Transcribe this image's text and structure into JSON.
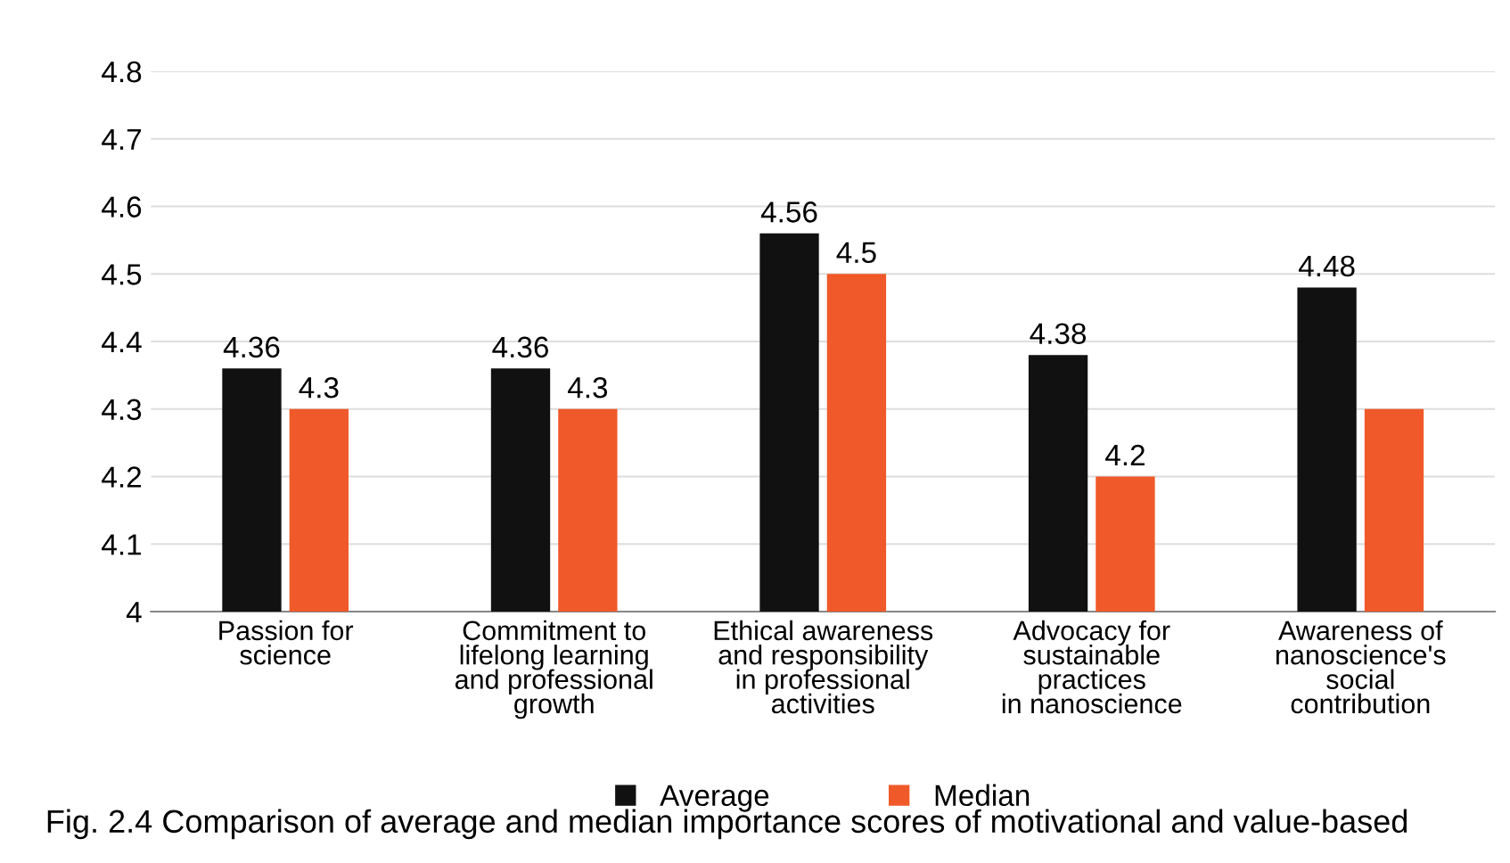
{
  "chart_data": {
    "type": "bar",
    "categories": [
      "Passion for\nscience",
      "Commitment to\nlifelong learning\nand professional\ngrowth",
      "Ethical awareness\nand responsibility\nin professional\nactivities",
      "Advocacy for\nsustainable\npractices\nin nanoscience",
      "Awareness of\nnanoscience's\nsocial\ncontribution"
    ],
    "series": [
      {
        "name": "Average",
        "color": "#111111",
        "values": [
          4.36,
          4.36,
          4.56,
          4.38,
          4.48
        ],
        "value_labels": [
          "4.36",
          "4.36",
          "4.56",
          "4.38",
          "4.48"
        ]
      },
      {
        "name": "Median",
        "color": "#f0592a",
        "values": [
          4.3,
          4.3,
          4.5,
          4.2,
          4.3
        ],
        "value_labels": [
          "4.3",
          "4.3",
          "4.5",
          "4.2",
          null
        ]
      }
    ],
    "ylim": [
      4,
      4.8
    ],
    "yticks": [
      4,
      4.1,
      4.2,
      4.3,
      4.4,
      4.5,
      4.6,
      4.7,
      4.8
    ],
    "grid": "y",
    "legend": "bottom",
    "annotations": [
      "Fig. 2.4 Comparison of average and median importance scores of motivational and value-based"
    ]
  }
}
